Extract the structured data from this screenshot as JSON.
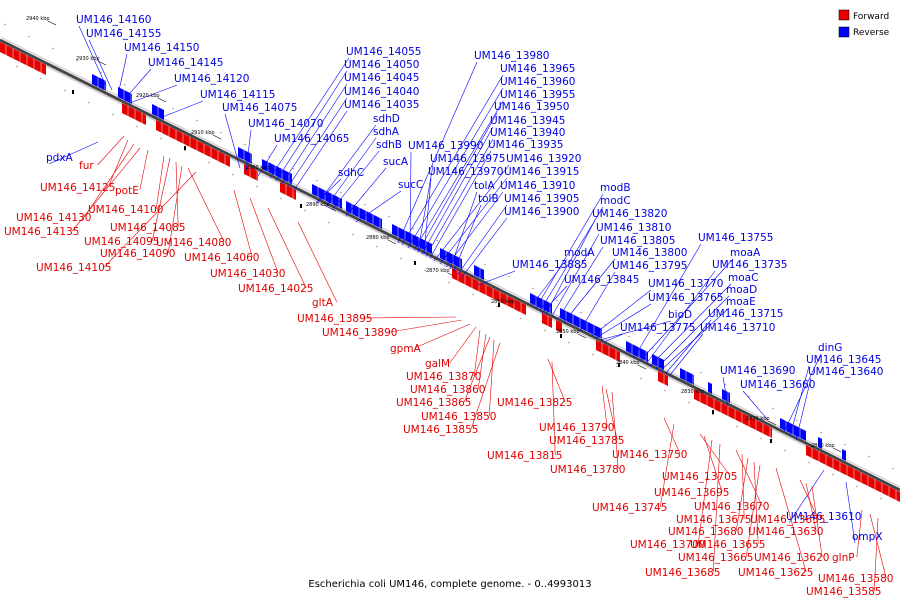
{
  "caption": "Escherichia coli UM146, complete genome. - 0..4993013",
  "legend": [
    {
      "label": "Forward",
      "color": "#e60000"
    },
    {
      "label": "Reverse",
      "color": "#0000ff"
    }
  ],
  "ticks": [
    "2940 kbp",
    "2930 kbp",
    "2920 kbp",
    "2910 kbp",
    "2900 kbp",
    "2890 kbp",
    "2880 kbp",
    "2870 kbp",
    "2860 kbp",
    "2850 kbp",
    "2840 kbp",
    "2830 kbp",
    "2820 kbp",
    "2810 kbp"
  ],
  "reverse_labels": [
    "UM146_14160",
    "UM146_14155",
    "UM146_14150",
    "UM146_14145",
    "UM146_14120",
    "UM146_14115",
    "UM146_14075",
    "UM146_14070",
    "UM146_14065",
    "pdxA",
    "UM146_14055",
    "UM146_14050",
    "UM146_14045",
    "UM146_14040",
    "UM146_14035",
    "sdhD",
    "sdhA",
    "sdhB",
    "sdhC",
    "sucA",
    "sucC",
    "UM146_13980",
    "UM146_13965",
    "UM146_13960",
    "UM146_13955",
    "UM146_13950",
    "UM146_13945",
    "UM146_13940",
    "UM146_13935",
    "UM146_13990",
    "UM146_13975",
    "UM146_13970",
    "UM146_13920",
    "UM146_13915",
    "UM146_13910",
    "tolA",
    "tolB",
    "UM146_13905",
    "UM146_13900",
    "modB",
    "modC",
    "UM146_13820",
    "UM146_13810",
    "UM146_13805",
    "UM146_13800",
    "modA",
    "UM146_13885",
    "UM146_13845",
    "UM146_13795",
    "UM146_13755",
    "moaA",
    "UM146_13735",
    "moaC",
    "moaD",
    "moaE",
    "UM146_13770",
    "UM146_13765",
    "bioD",
    "UM146_13715",
    "UM146_13775",
    "UM146_13710",
    "dinG",
    "UM146_13645",
    "UM146_13640",
    "UM146_13690",
    "UM146_13660",
    "UM146_13610",
    "ompX"
  ],
  "forward_labels": [
    "fur",
    "UM146_14125",
    "potE",
    "UM146_14130",
    "UM146_14135",
    "UM146_14100",
    "UM146_14085",
    "UM146_14095",
    "UM146_14080",
    "UM146_14090",
    "UM146_14105",
    "UM146_14060",
    "UM146_14030",
    "UM146_14025",
    "gltA",
    "UM146_13895",
    "UM146_13890",
    "gpmA",
    "galM",
    "UM146_13870",
    "UM146_13860",
    "UM146_13865",
    "UM146_13825",
    "UM146_13850",
    "UM146_13855",
    "UM146_13790",
    "UM146_13785",
    "UM146_13750",
    "UM146_13815",
    "UM146_13780",
    "UM146_13705",
    "UM146_13695",
    "UM146_13745",
    "UM146_13670",
    "UM146_13675",
    "UM146_13680",
    "UM146_13700",
    "UM146_13655",
    "UM146_13665",
    "UM146_13685",
    "UM146_13635",
    "UM146_13630",
    "UM146_13620",
    "UM146_13625",
    "glnP",
    "UM146_13580",
    "UM146_13585"
  ]
}
